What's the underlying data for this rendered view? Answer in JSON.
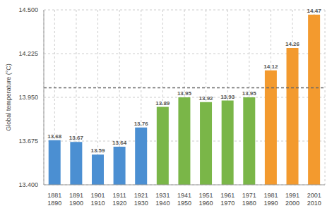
{
  "chart_data": {
    "type": "bar",
    "y_label": "Global temperature (°C)",
    "categories": [
      "1881 1890",
      "1891 1900",
      "1901 1910",
      "1911 1920",
      "1921 1930",
      "1931 1940",
      "1941 1950",
      "1951 1960",
      "1961 1970",
      "1971 1980",
      "1981 1990",
      "1991 2000",
      "2001 2010"
    ],
    "values": [
      13.68,
      13.67,
      13.59,
      13.64,
      13.76,
      13.89,
      13.95,
      13.92,
      13.93,
      13.95,
      14.12,
      14.26,
      14.47
    ],
    "colors": [
      "#4b8fd2",
      "#4b8fd2",
      "#4b8fd2",
      "#4b8fd2",
      "#4b8fd2",
      "#7ab648",
      "#7ab648",
      "#7ab648",
      "#7ab648",
      "#7ab648",
      "#f39a2e",
      "#f39a2e",
      "#f39a2e"
    ],
    "ylim": [
      13.4,
      14.5
    ],
    "yticks": [
      {
        "value": 13.4,
        "label": "13.400"
      },
      13.675,
      {
        "value": 13.95,
        "label": "13.950"
      },
      14.225,
      {
        "value": 14.5,
        "label": "14.500"
      }
    ],
    "reference_line": 14.01,
    "grid": true,
    "data_labels": true
  }
}
